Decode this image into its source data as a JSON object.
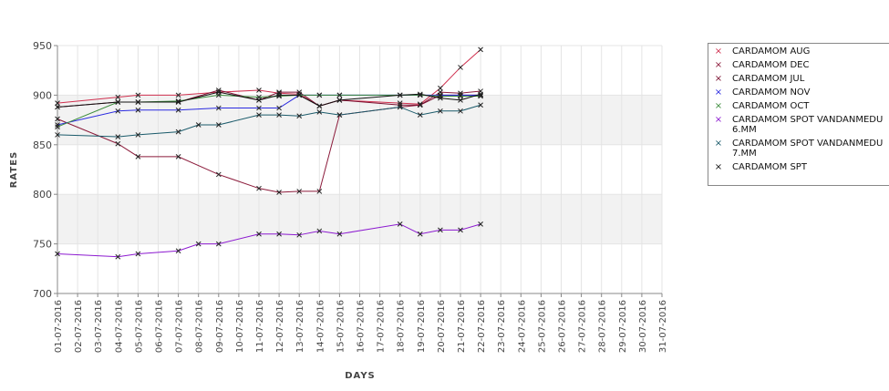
{
  "chart_data": {
    "type": "line",
    "xlabel": "DAYS",
    "ylabel": "RATES",
    "ylim": [
      700,
      950
    ],
    "yticks": [
      700,
      750,
      800,
      850,
      900,
      950
    ],
    "legend_position": "right",
    "categories": [
      "01-07-2016",
      "02-07-2016",
      "03-07-2016",
      "04-07-2016",
      "05-07-2016",
      "06-07-2016",
      "07-07-2016",
      "08-07-2016",
      "09-07-2016",
      "10-07-2016",
      "11-07-2016",
      "12-07-2016",
      "13-07-2016",
      "14-07-2016",
      "15-07-2016",
      "16-07-2016",
      "17-07-2016",
      "18-07-2016",
      "19-07-2016",
      "20-07-2016",
      "21-07-2016",
      "22-07-2016",
      "23-07-2016",
      "24-07-2016",
      "25-07-2016",
      "26-07-2016",
      "27-07-2016",
      "28-07-2016",
      "29-07-2016",
      "30-07-2016",
      "31-07-2016"
    ],
    "series": [
      {
        "name": "CARDAMOM AUG",
        "color": "#d0304f",
        "points": [
          [
            1,
            892
          ],
          [
            4,
            898
          ],
          [
            5,
            900
          ],
          [
            7,
            900
          ],
          [
            9,
            903
          ],
          [
            11,
            905
          ],
          [
            12,
            902
          ],
          [
            13,
            901
          ],
          [
            14,
            889
          ],
          [
            15,
            895
          ],
          [
            18,
            892
          ],
          [
            19,
            891
          ],
          [
            20,
            907
          ],
          [
            21,
            928
          ],
          [
            22,
            946
          ]
        ]
      },
      {
        "name": "CARDAMOM DEC",
        "color": "#8b1a3a",
        "points": [
          [
            1,
            876
          ],
          [
            4,
            851
          ],
          [
            5,
            838
          ],
          [
            7,
            838
          ],
          [
            9,
            820
          ],
          [
            11,
            806
          ],
          [
            12,
            802
          ],
          [
            13,
            803
          ],
          [
            14,
            803
          ],
          [
            15,
            880
          ],
          [
            18,
            888
          ],
          [
            19,
            890
          ],
          [
            20,
            903
          ],
          [
            21,
            902
          ],
          [
            22,
            904
          ]
        ]
      },
      {
        "name": "CARDAMOM JUL",
        "color": "#7a1030",
        "points": [
          [
            1,
            888
          ],
          [
            4,
            893
          ],
          [
            5,
            893
          ],
          [
            7,
            893
          ],
          [
            9,
            905
          ],
          [
            11,
            895
          ],
          [
            12,
            903
          ],
          [
            13,
            903
          ],
          [
            14,
            889
          ],
          [
            15,
            895
          ],
          [
            18,
            890
          ],
          [
            19,
            890
          ],
          [
            20,
            900
          ],
          [
            21,
            900
          ],
          [
            22,
            900
          ]
        ]
      },
      {
        "name": "CARDAMOM NOV",
        "color": "#2a2ae0",
        "points": [
          [
            1,
            870
          ],
          [
            4,
            884
          ],
          [
            5,
            885
          ],
          [
            7,
            885
          ],
          [
            9,
            887
          ],
          [
            11,
            887
          ],
          [
            12,
            887
          ],
          [
            13,
            900
          ],
          [
            14,
            900
          ],
          [
            15,
            900
          ],
          [
            18,
            900
          ],
          [
            19,
            900
          ],
          [
            20,
            900
          ],
          [
            21,
            900
          ],
          [
            22,
            900
          ]
        ]
      },
      {
        "name": "CARDAMOM OCT",
        "color": "#3c8c3c",
        "points": [
          [
            1,
            868
          ],
          [
            4,
            893
          ],
          [
            5,
            893
          ],
          [
            7,
            894
          ],
          [
            9,
            900
          ],
          [
            11,
            898
          ],
          [
            12,
            899
          ],
          [
            13,
            900
          ],
          [
            14,
            900
          ],
          [
            15,
            900
          ],
          [
            18,
            900
          ],
          [
            19,
            900
          ],
          [
            20,
            899
          ],
          [
            21,
            899
          ],
          [
            22,
            899
          ]
        ]
      },
      {
        "name": "CARDAMOM SPOT VANDANMEDU\n6.MM",
        "color": "#8c1ad0",
        "points": [
          [
            1,
            740
          ],
          [
            4,
            737
          ],
          [
            5,
            740
          ],
          [
            7,
            743
          ],
          [
            8,
            750
          ],
          [
            9,
            750
          ],
          [
            11,
            760
          ],
          [
            12,
            760
          ],
          [
            13,
            759
          ],
          [
            14,
            763
          ],
          [
            15,
            760
          ],
          [
            18,
            770
          ],
          [
            19,
            760
          ],
          [
            20,
            764
          ],
          [
            21,
            764
          ],
          [
            22,
            770
          ]
        ]
      },
      {
        "name": "CARDAMOM SPOT VANDANMEDU\n7.MM",
        "color": "#1a5a6a",
        "points": [
          [
            1,
            860
          ],
          [
            4,
            858
          ],
          [
            5,
            860
          ],
          [
            7,
            863
          ],
          [
            8,
            870
          ],
          [
            9,
            870
          ],
          [
            11,
            880
          ],
          [
            12,
            880
          ],
          [
            13,
            879
          ],
          [
            14,
            883
          ],
          [
            15,
            880
          ],
          [
            18,
            888
          ],
          [
            19,
            880
          ],
          [
            20,
            884
          ],
          [
            21,
            884
          ],
          [
            22,
            890
          ]
        ]
      },
      {
        "name": "CARDAMOM SPT",
        "color": "#111111",
        "points": [
          [
            1,
            888
          ],
          [
            4,
            893
          ],
          [
            5,
            893
          ],
          [
            7,
            893
          ],
          [
            9,
            903
          ],
          [
            11,
            895
          ],
          [
            12,
            900
          ],
          [
            13,
            900
          ],
          [
            14,
            889
          ],
          [
            15,
            895
          ],
          [
            18,
            900
          ],
          [
            19,
            901
          ],
          [
            20,
            897
          ],
          [
            21,
            895
          ],
          [
            22,
            901
          ]
        ]
      }
    ]
  }
}
